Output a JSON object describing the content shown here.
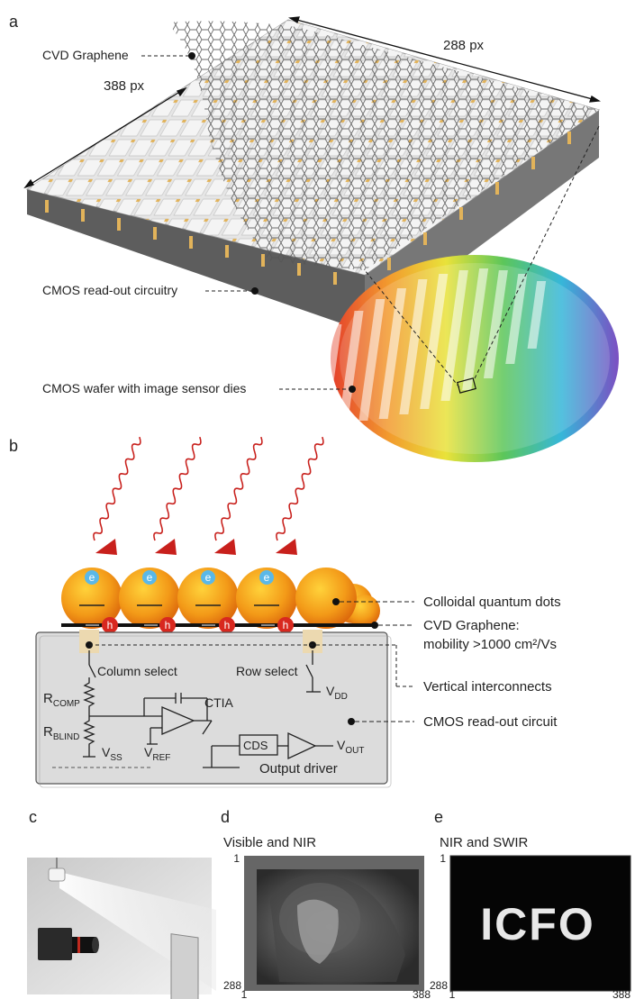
{
  "panels": {
    "a": "a",
    "b": "b",
    "c": "c",
    "d": "d",
    "e": "e"
  },
  "panel_a": {
    "dim_width": "288 px",
    "dim_height": "388 px",
    "graphene_label": "CVD Graphene",
    "cmos_label": "CMOS read-out circuitry",
    "wafer_label": "CMOS wafer with image sensor dies"
  },
  "panel_b": {
    "electron": "e",
    "hole": "h",
    "qd_label": "Colloidal quantum dots",
    "graphene_label_1": "CVD Graphene:",
    "graphene_label_2": "mobility >1000 cm²/Vs",
    "interconnect_label": "Vertical interconnects",
    "readout_label": "CMOS read-out circuit",
    "column_select": "Column select",
    "row_select": "Row select",
    "r_comp": "R",
    "r_comp_sub": "COMP",
    "r_blind": "R",
    "r_blind_sub": "BLIND",
    "vss": "V",
    "vss_sub": "SS",
    "vref": "V",
    "vref_sub": "REF",
    "vdd": "V",
    "vdd_sub": "DD",
    "ctia": "CTIA",
    "cds": "CDS",
    "vout": "V",
    "vout_sub": "OUT",
    "output_driver": "Output driver"
  },
  "panel_d": {
    "title": "Visible and NIR",
    "y_top": "1",
    "y_bottom": "288",
    "x_left": "1",
    "x_right": "388"
  },
  "panel_e": {
    "title": "NIR and SWIR",
    "y_top": "1",
    "y_bottom": "288",
    "x_left": "1",
    "x_right": "388",
    "image_text": "ICFO"
  }
}
